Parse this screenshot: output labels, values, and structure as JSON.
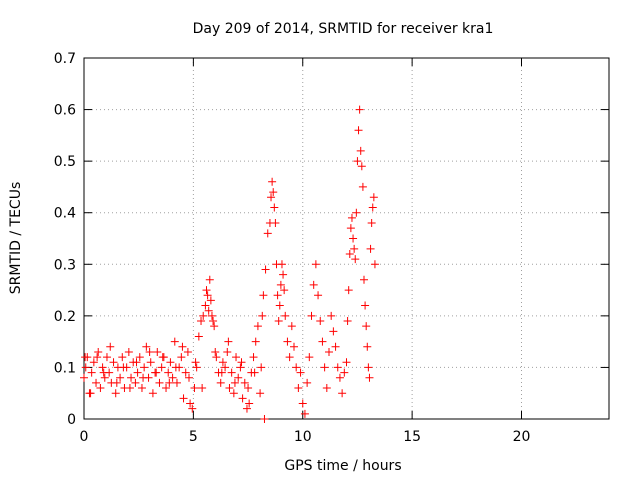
{
  "chart_data": {
    "type": "scatter",
    "title": "Day 209 of 2014, SRMTID for receiver kra1",
    "xlabel": "GPS time / hours",
    "ylabel": "SRMTID / TECUs",
    "xlim": [
      0,
      24
    ],
    "ylim": [
      0,
      0.7
    ],
    "xticks": [
      0,
      5,
      10,
      15,
      20
    ],
    "xtick_labels": [
      "0",
      "5",
      "10",
      "15",
      "20"
    ],
    "yticks": [
      0,
      0.1,
      0.2,
      0.3,
      0.4,
      0.5,
      0.6,
      0.7
    ],
    "ytick_labels": [
      "0",
      "0.1",
      "0.2",
      "0.3",
      "0.4",
      "0.5",
      "0.6",
      "0.7"
    ],
    "grid": true,
    "marker": "plus",
    "color": "#ff0000",
    "series": [
      {
        "name": "kra1",
        "x": [
          0.0,
          0.08,
          0.15,
          0.25,
          0.35,
          0.45,
          0.55,
          0.65,
          0.75,
          0.85,
          0.95,
          1.05,
          1.15,
          1.25,
          1.35,
          1.45,
          1.55,
          1.65,
          1.75,
          1.85,
          1.95,
          2.05,
          2.15,
          2.25,
          2.35,
          2.45,
          2.55,
          2.65,
          2.75,
          2.85,
          2.95,
          3.05,
          3.15,
          3.25,
          3.35,
          3.45,
          3.55,
          3.65,
          3.75,
          3.85,
          3.95,
          4.05,
          4.15,
          4.25,
          4.35,
          4.45,
          4.55,
          4.65,
          4.75,
          4.85,
          4.95,
          5.05,
          5.15,
          5.25,
          5.35,
          5.45,
          5.55,
          5.6,
          5.65,
          5.7,
          5.75,
          5.8,
          5.85,
          5.9,
          5.95,
          6.05,
          6.15,
          6.25,
          6.35,
          6.45,
          6.55,
          6.65,
          6.75,
          6.85,
          6.95,
          7.05,
          7.15,
          7.25,
          7.35,
          7.45,
          7.55,
          7.65,
          7.75,
          7.85,
          7.95,
          8.05,
          8.15,
          8.2,
          8.3,
          8.4,
          8.5,
          8.55,
          8.6,
          8.65,
          8.7,
          8.75,
          8.8,
          8.85,
          8.9,
          8.95,
          9.0,
          9.05,
          9.1,
          9.15,
          9.2,
          9.3,
          9.4,
          9.5,
          9.6,
          9.7,
          9.8,
          9.9,
          10.0,
          10.1,
          10.2,
          10.3,
          10.4,
          10.5,
          10.6,
          10.7,
          10.8,
          10.9,
          11.0,
          11.1,
          11.2,
          11.3,
          11.4,
          11.5,
          11.6,
          11.7,
          11.8,
          11.9,
          12.0,
          12.05,
          12.1,
          12.15,
          12.2,
          12.25,
          12.3,
          12.35,
          12.4,
          12.45,
          12.5,
          12.55,
          12.6,
          12.65,
          12.7,
          12.75,
          12.8,
          12.85,
          12.9,
          12.95,
          13.0,
          13.05,
          13.1,
          13.15,
          13.2,
          13.25,
          13.3,
          0.05,
          0.3,
          0.6,
          0.9,
          1.2,
          1.5,
          1.8,
          2.1,
          2.4,
          2.7,
          3.0,
          3.3,
          3.6,
          3.9,
          4.2,
          4.5,
          4.8,
          5.1,
          5.4,
          6.0,
          6.3,
          6.6,
          6.9,
          7.2,
          7.5,
          7.8,
          8.1,
          8.25
        ],
        "y": [
          0.08,
          0.1,
          0.12,
          0.05,
          0.09,
          0.11,
          0.07,
          0.13,
          0.06,
          0.1,
          0.08,
          0.12,
          0.09,
          0.07,
          0.11,
          0.05,
          0.1,
          0.08,
          0.12,
          0.06,
          0.1,
          0.13,
          0.08,
          0.11,
          0.07,
          0.09,
          0.12,
          0.06,
          0.1,
          0.14,
          0.08,
          0.11,
          0.05,
          0.09,
          0.13,
          0.07,
          0.1,
          0.12,
          0.06,
          0.09,
          0.11,
          0.08,
          0.15,
          0.07,
          0.1,
          0.12,
          0.04,
          0.09,
          0.13,
          0.03,
          0.02,
          0.06,
          0.1,
          0.16,
          0.19,
          0.2,
          0.22,
          0.25,
          0.24,
          0.21,
          0.27,
          0.23,
          0.2,
          0.19,
          0.18,
          0.12,
          0.09,
          0.07,
          0.11,
          0.1,
          0.13,
          0.06,
          0.09,
          0.05,
          0.12,
          0.08,
          0.1,
          0.04,
          0.07,
          0.02,
          0.03,
          0.09,
          0.12,
          0.15,
          0.18,
          0.05,
          0.2,
          0.24,
          0.29,
          0.36,
          0.38,
          0.43,
          0.46,
          0.44,
          0.41,
          0.38,
          0.3,
          0.24,
          0.19,
          0.22,
          0.26,
          0.3,
          0.28,
          0.25,
          0.2,
          0.15,
          0.12,
          0.18,
          0.14,
          0.1,
          0.06,
          0.09,
          0.03,
          0.01,
          0.07,
          0.12,
          0.2,
          0.26,
          0.3,
          0.24,
          0.19,
          0.15,
          0.1,
          0.06,
          0.13,
          0.2,
          0.17,
          0.14,
          0.1,
          0.08,
          0.05,
          0.09,
          0.11,
          0.19,
          0.25,
          0.32,
          0.37,
          0.39,
          0.35,
          0.33,
          0.31,
          0.4,
          0.5,
          0.56,
          0.6,
          0.52,
          0.49,
          0.45,
          0.27,
          0.22,
          0.18,
          0.14,
          0.1,
          0.08,
          0.33,
          0.38,
          0.41,
          0.43,
          0.3,
          0.12,
          0.05,
          0.12,
          0.09,
          0.14,
          0.07,
          0.1,
          0.06,
          0.11,
          0.08,
          0.13,
          0.09,
          0.12,
          0.07,
          0.1,
          0.14,
          0.08,
          0.11,
          0.06,
          0.13,
          0.09,
          0.15,
          0.07,
          0.11,
          0.06,
          0.09,
          0.1,
          0.0
        ]
      }
    ]
  }
}
